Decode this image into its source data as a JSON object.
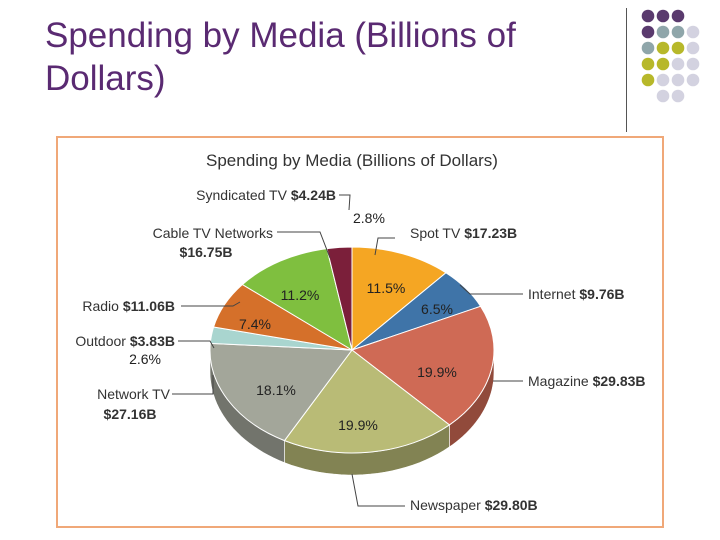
{
  "slide": {
    "title": "Spending by Media (Billions of Dollars)",
    "accent_color": "#5a2a72",
    "dot_colors": [
      "#5a3a6e",
      "#8fa6aa",
      "#b7b82a",
      "#d3d2e0"
    ]
  },
  "chart_data": {
    "type": "pie",
    "title": "Spending by Media (Billions of Dollars)",
    "unit": "Billions of Dollars",
    "slices": [
      {
        "name": "Spot TV",
        "value_label": "$17.23B",
        "value": 17.23,
        "percent": 11.5,
        "percent_label": "11.5%",
        "color": "#f5a623"
      },
      {
        "name": "Internet",
        "value_label": "$9.76B",
        "value": 9.76,
        "percent": 6.5,
        "percent_label": "6.5%",
        "color": "#3f74a8"
      },
      {
        "name": "Magazine",
        "value_label": "$29.83B",
        "value": 29.83,
        "percent": 19.9,
        "percent_label": "19.9%",
        "color": "#cf6a55"
      },
      {
        "name": "Newspaper",
        "value_label": "$29.80B",
        "value": 29.8,
        "percent": 19.9,
        "percent_label": "19.9%",
        "color": "#b9bb76"
      },
      {
        "name": "Network TV",
        "value_label": "$27.16B",
        "value": 27.16,
        "percent": 18.1,
        "percent_label": "18.1%",
        "color": "#a3a69a"
      },
      {
        "name": "Outdoor",
        "value_label": "$3.83B",
        "value": 3.83,
        "percent": 2.6,
        "percent_label": "2.6%",
        "color": "#a9d5cf"
      },
      {
        "name": "Radio",
        "value_label": "$11.06B",
        "value": 11.06,
        "percent": 7.4,
        "percent_label": "7.4%",
        "color": "#d5702a"
      },
      {
        "name": "Cable TV Networks",
        "value_label": "$16.75B",
        "value": 16.75,
        "percent": 11.2,
        "percent_label": "11.2%",
        "color": "#7fbf3f"
      },
      {
        "name": "Syndicated TV",
        "value_label": "$4.24B",
        "value": 4.24,
        "percent": 2.8,
        "percent_label": "2.8%",
        "color": "#7b1f3a"
      }
    ]
  }
}
